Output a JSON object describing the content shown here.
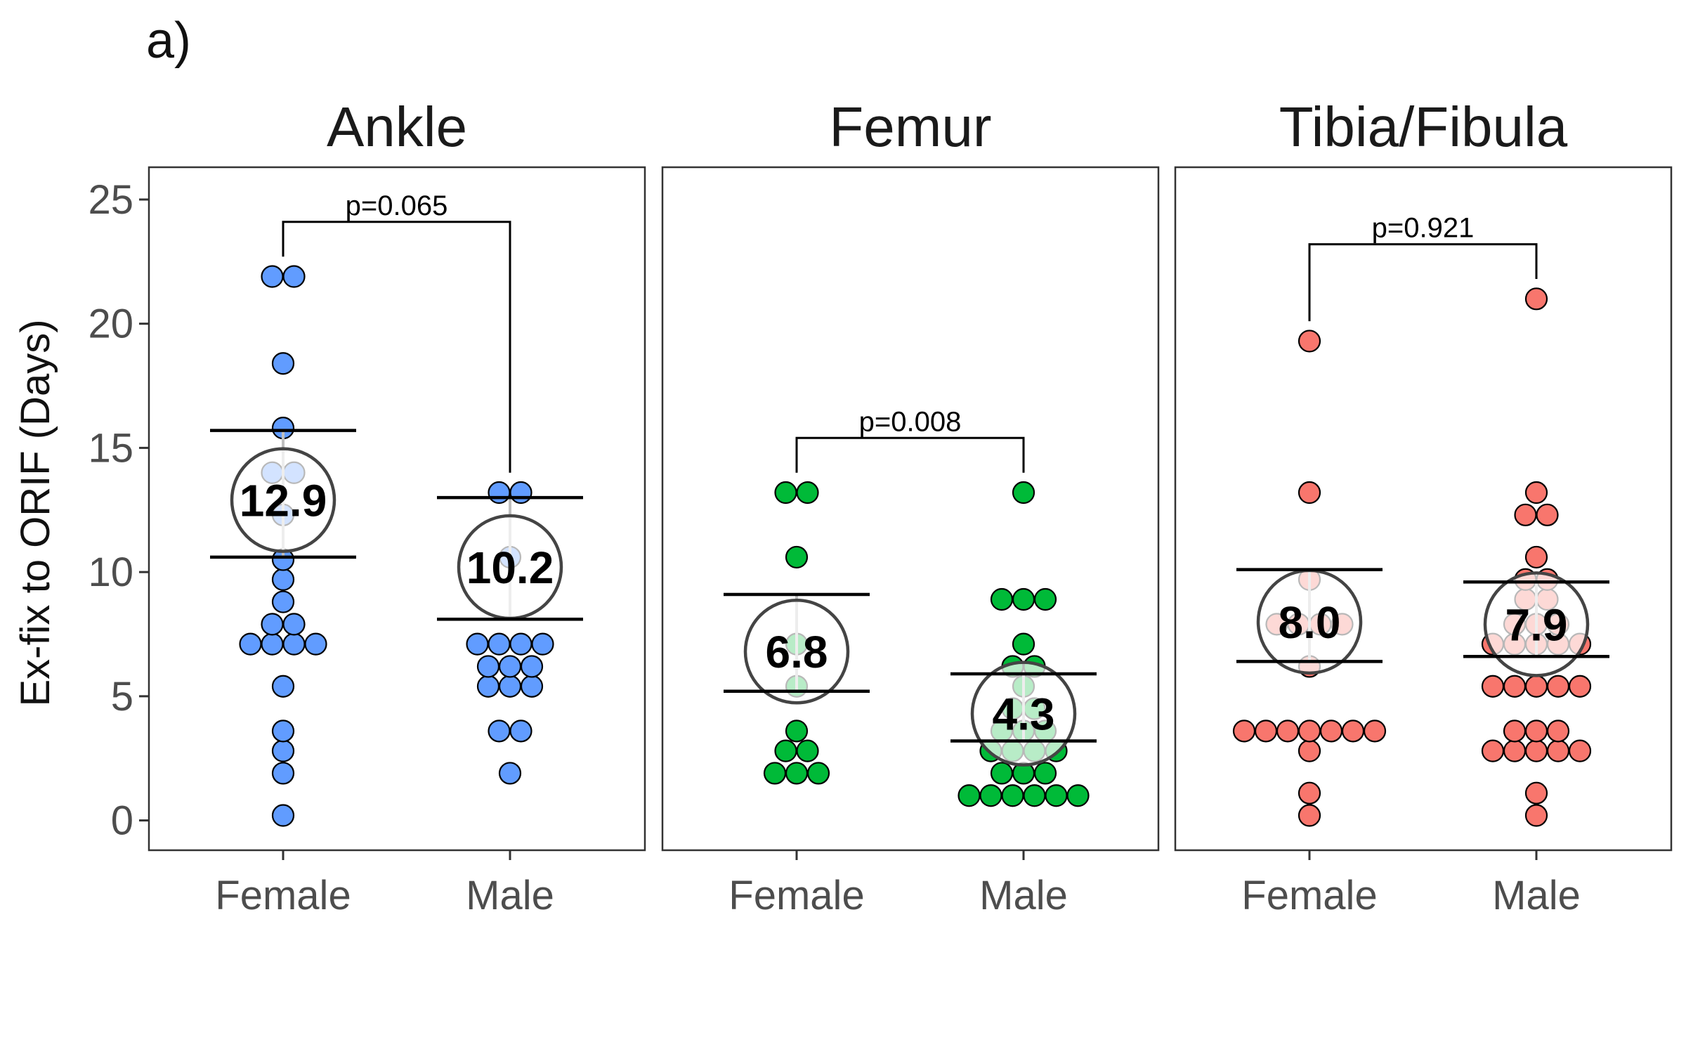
{
  "figure": {
    "panel_label": "a)",
    "ylabel": "Ex-fix to ORIF (Days)"
  },
  "chart_data": {
    "type": "scatter",
    "subtype": "beeswarm dot plot with mean and error bars, faceted",
    "ylabel": "Ex-fix to ORIF (Days)",
    "ylim": [
      -1.2,
      26.3
    ],
    "yticks": [
      0,
      5,
      10,
      15,
      20,
      25
    ],
    "categories": [
      "Female",
      "Male"
    ],
    "legend": "none",
    "grid": false,
    "facets": [
      {
        "title": "Ankle",
        "color": "#619CFF",
        "pvalue": "p=0.065",
        "groups": [
          {
            "name": "Female",
            "points": [
              0.2,
              1.9,
              2.8,
              3.6,
              5.4,
              7.1,
              7.1,
              7.1,
              7.1,
              7.9,
              7.9,
              8.8,
              9.7,
              10.5,
              12.3,
              14.0,
              14.0,
              15.8,
              18.4,
              21.9,
              21.9
            ],
            "mean": 12.9,
            "mean_label": "12.9",
            "error_low": 10.6,
            "error_high": 15.7
          },
          {
            "name": "Male",
            "points": [
              1.9,
              3.6,
              3.6,
              5.4,
              5.4,
              5.4,
              6.2,
              6.2,
              6.2,
              7.1,
              7.1,
              7.1,
              7.1,
              10.6,
              13.2,
              13.2
            ],
            "mean": 10.2,
            "mean_label": "10.2",
            "error_low": 8.1,
            "error_high": 13.0
          }
        ]
      },
      {
        "title": "Femur",
        "color": "#00BA38",
        "pvalue": "p=0.008",
        "groups": [
          {
            "name": "Female",
            "points": [
              1.9,
              1.9,
              1.9,
              2.8,
              2.8,
              3.6,
              5.4,
              7.1,
              10.6,
              13.2,
              13.2
            ],
            "mean": 6.8,
            "mean_label": "6.8",
            "error_low": 5.2,
            "error_high": 9.1
          },
          {
            "name": "Male",
            "points": [
              1.0,
              1.0,
              1.0,
              1.0,
              1.0,
              1.0,
              1.9,
              1.9,
              1.9,
              2.8,
              2.8,
              2.8,
              2.8,
              3.6,
              3.6,
              3.6,
              4.5,
              4.5,
              5.4,
              6.2,
              6.2,
              7.1,
              8.9,
              8.9,
              8.9,
              13.2
            ],
            "mean": 4.3,
            "mean_label": "4.3",
            "error_low": 3.2,
            "error_high": 5.9
          }
        ]
      },
      {
        "title": "Tibia/Fibula",
        "color": "#F8766D",
        "pvalue": "p=0.921",
        "groups": [
          {
            "name": "Female",
            "points": [
              0.2,
              1.1,
              2.8,
              3.6,
              3.6,
              3.6,
              3.6,
              3.6,
              3.6,
              3.6,
              6.2,
              7.9,
              7.9,
              7.9,
              7.9,
              9.7,
              13.2,
              19.3
            ],
            "mean": 8.0,
            "mean_label": "8.0",
            "error_low": 6.4,
            "error_high": 10.1
          },
          {
            "name": "Male",
            "points": [
              0.2,
              1.1,
              2.8,
              2.8,
              2.8,
              2.8,
              2.8,
              3.6,
              3.6,
              3.6,
              5.4,
              5.4,
              5.4,
              5.4,
              5.4,
              7.1,
              7.1,
              7.1,
              7.1,
              7.1,
              7.9,
              7.9,
              7.9,
              8.9,
              8.9,
              9.7,
              9.7,
              10.6,
              12.3,
              12.3,
              13.2,
              21.0
            ],
            "mean": 7.9,
            "mean_label": "7.9",
            "error_low": 6.6,
            "error_high": 9.6
          }
        ]
      }
    ]
  }
}
